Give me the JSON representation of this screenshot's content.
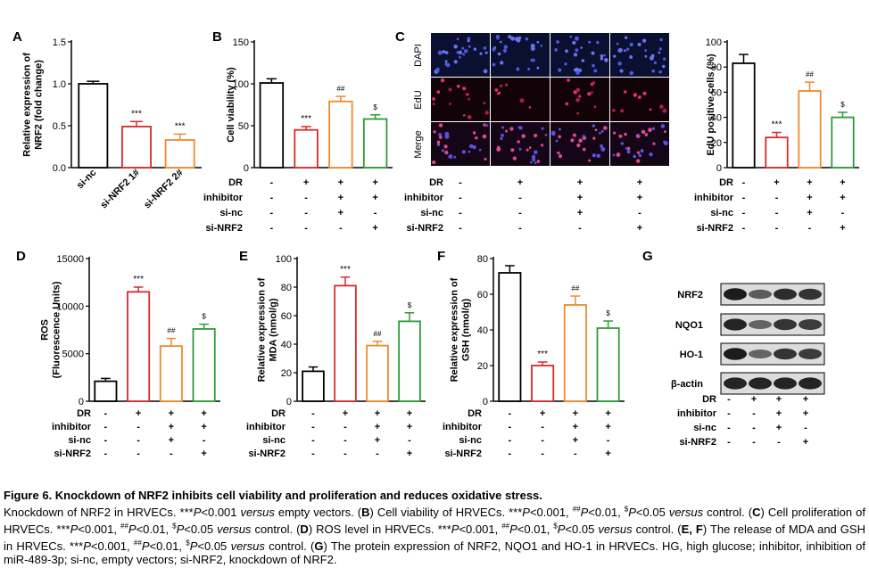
{
  "panels": {
    "A": {
      "letter": "A",
      "ylabel": [
        "Relative expression of",
        "NRF2 (fold change)"
      ],
      "yticks": [
        "0.0",
        "0.5",
        "1.0",
        "1.5"
      ],
      "ylim": [
        0,
        1.5
      ],
      "categories": [
        "si-nc",
        "si-NRF2 1#",
        "si-NRF2 2#"
      ],
      "values": [
        1.0,
        0.49,
        0.33
      ],
      "errors": [
        0.03,
        0.06,
        0.07
      ],
      "sig": [
        "",
        "***",
        "***"
      ],
      "colors": [
        "#000000",
        "#d62b2b",
        "#ef8a2d"
      ]
    },
    "B": {
      "letter": "B",
      "ylabel": [
        "Cell viability (%)"
      ],
      "yticks": [
        "0",
        "50",
        "100",
        "150"
      ],
      "ylim": [
        0,
        150
      ],
      "values": [
        101,
        45,
        79,
        58
      ],
      "errors": [
        5,
        4,
        6,
        5
      ],
      "sig": [
        "",
        "***",
        "##",
        "$"
      ]
    },
    "C": {
      "letter": "C",
      "row_labels": [
        "DAPI",
        "EdU",
        "Merge"
      ],
      "ylabel": [
        "EdU positive cells (%)"
      ],
      "yticks": [
        "0",
        "20",
        "40",
        "60",
        "80",
        "100"
      ],
      "ylim": [
        0,
        100
      ],
      "values": [
        83,
        24,
        61,
        40
      ],
      "errors": [
        7,
        4,
        7,
        4
      ],
      "sig": [
        "",
        "***",
        "##",
        "$"
      ]
    },
    "D": {
      "letter": "D",
      "ylabel": [
        "ROS",
        "(Fluorescence Units)"
      ],
      "yticks": [
        "0",
        "5000",
        "10000",
        "15000"
      ],
      "ylim": [
        0,
        15000
      ],
      "values": [
        2100,
        11500,
        5800,
        7600
      ],
      "errors": [
        300,
        500,
        800,
        500
      ],
      "sig": [
        "",
        "***",
        "##",
        "$"
      ]
    },
    "E": {
      "letter": "E",
      "ylabel": [
        "Relative expression of",
        "MDA (nmol/g)"
      ],
      "yticks": [
        "0",
        "20",
        "40",
        "60",
        "80",
        "100"
      ],
      "ylim": [
        0,
        100
      ],
      "values": [
        21,
        81,
        39,
        56
      ],
      "errors": [
        3,
        6,
        3,
        6
      ],
      "sig": [
        "",
        "***",
        "##",
        "$"
      ]
    },
    "F": {
      "letter": "F",
      "ylabel": [
        "Relative expression of",
        "GSH (nmol/g)"
      ],
      "yticks": [
        "0",
        "20",
        "40",
        "60",
        "80"
      ],
      "ylim": [
        0,
        80
      ],
      "values": [
        72,
        20,
        54,
        41
      ],
      "errors": [
        4,
        2,
        5,
        4
      ],
      "sig": [
        "",
        "***",
        "##",
        "$"
      ]
    },
    "G": {
      "letter": "G",
      "blots": [
        "NRF2",
        "NQO1",
        "HO-1",
        "β-actin"
      ],
      "band_intensity": [
        [
          0.95,
          0.55,
          0.85,
          0.8
        ],
        [
          0.9,
          0.5,
          0.8,
          0.75
        ],
        [
          0.95,
          0.5,
          0.8,
          0.75
        ],
        [
          0.9,
          0.9,
          0.9,
          0.9
        ]
      ]
    }
  },
  "series_colors": [
    "#000000",
    "#d62b2b",
    "#ef8a2d",
    "#2e9a3c"
  ],
  "treatment_table": {
    "rows": [
      "DR",
      "inhibitor",
      "si-nc",
      "si-NRF2"
    ],
    "signs": [
      [
        "-",
        "+",
        "+",
        "+"
      ],
      [
        "-",
        "-",
        "+",
        "+"
      ],
      [
        "-",
        "-",
        "+",
        "-"
      ],
      [
        "-",
        "-",
        "-",
        "+"
      ]
    ]
  },
  "caption": {
    "title": "Figure 6. Knockdown of NRF2 inhibits cell viability and proliferation and reduces oxidative stress.",
    "parts": [
      [
        "t",
        "Knockdown of NRF2 in HRVECs. ***"
      ],
      [
        "i",
        "P"
      ],
      [
        "t",
        "<0.001 "
      ],
      [
        "i",
        "versus"
      ],
      [
        "t",
        " empty vectors. ("
      ],
      [
        "b",
        "B"
      ],
      [
        "t",
        ") Cell viability of HRVECs. ***"
      ],
      [
        "i",
        "P"
      ],
      [
        "t",
        "<0.001, "
      ],
      [
        "sup",
        "##"
      ],
      [
        "i",
        "P"
      ],
      [
        "t",
        "<0.01, "
      ],
      [
        "sup",
        "$"
      ],
      [
        "i",
        "P"
      ],
      [
        "t",
        "<0.05 "
      ],
      [
        "i",
        "versus"
      ],
      [
        "t",
        " control. ("
      ],
      [
        "b",
        "C"
      ],
      [
        "t",
        ") Cell proliferation of HRVECs. ***"
      ],
      [
        "i",
        "P"
      ],
      [
        "t",
        "<0.001, "
      ],
      [
        "sup",
        "##"
      ],
      [
        "i",
        "P"
      ],
      [
        "t",
        "<0.01, "
      ],
      [
        "sup",
        "$"
      ],
      [
        "i",
        "P"
      ],
      [
        "t",
        "<0.05 "
      ],
      [
        "i",
        "versus"
      ],
      [
        "t",
        " control. ("
      ],
      [
        "b",
        "D"
      ],
      [
        "t",
        ") ROS level in HRVECs. ***"
      ],
      [
        "i",
        "P"
      ],
      [
        "t",
        "<0.001, "
      ],
      [
        "sup",
        "##"
      ],
      [
        "i",
        "P"
      ],
      [
        "t",
        "<0.01, "
      ],
      [
        "sup",
        "$"
      ],
      [
        "i",
        "P"
      ],
      [
        "t",
        "<0.05 "
      ],
      [
        "i",
        "versus"
      ],
      [
        "t",
        " control. ("
      ],
      [
        "b",
        "E, F"
      ],
      [
        "t",
        ") The release of MDA and GSH in HRVECs. ***"
      ],
      [
        "i",
        "P"
      ],
      [
        "t",
        "<0.001, "
      ],
      [
        "sup",
        "##"
      ],
      [
        "i",
        "P"
      ],
      [
        "t",
        "<0.01, "
      ],
      [
        "sup",
        "$"
      ],
      [
        "i",
        "P"
      ],
      [
        "t",
        "<0.05 "
      ],
      [
        "i",
        "versus"
      ],
      [
        "t",
        " control. ("
      ],
      [
        "b",
        "G"
      ],
      [
        "t",
        ") The protein expression of NRF2, NQO1 and HO-1 in HRVECs. HG, high glucose; inhibitor, inhibition of miR-489-3p; si-nc, empty vectors; si-NRF2, knockdown of NRF2."
      ]
    ]
  }
}
